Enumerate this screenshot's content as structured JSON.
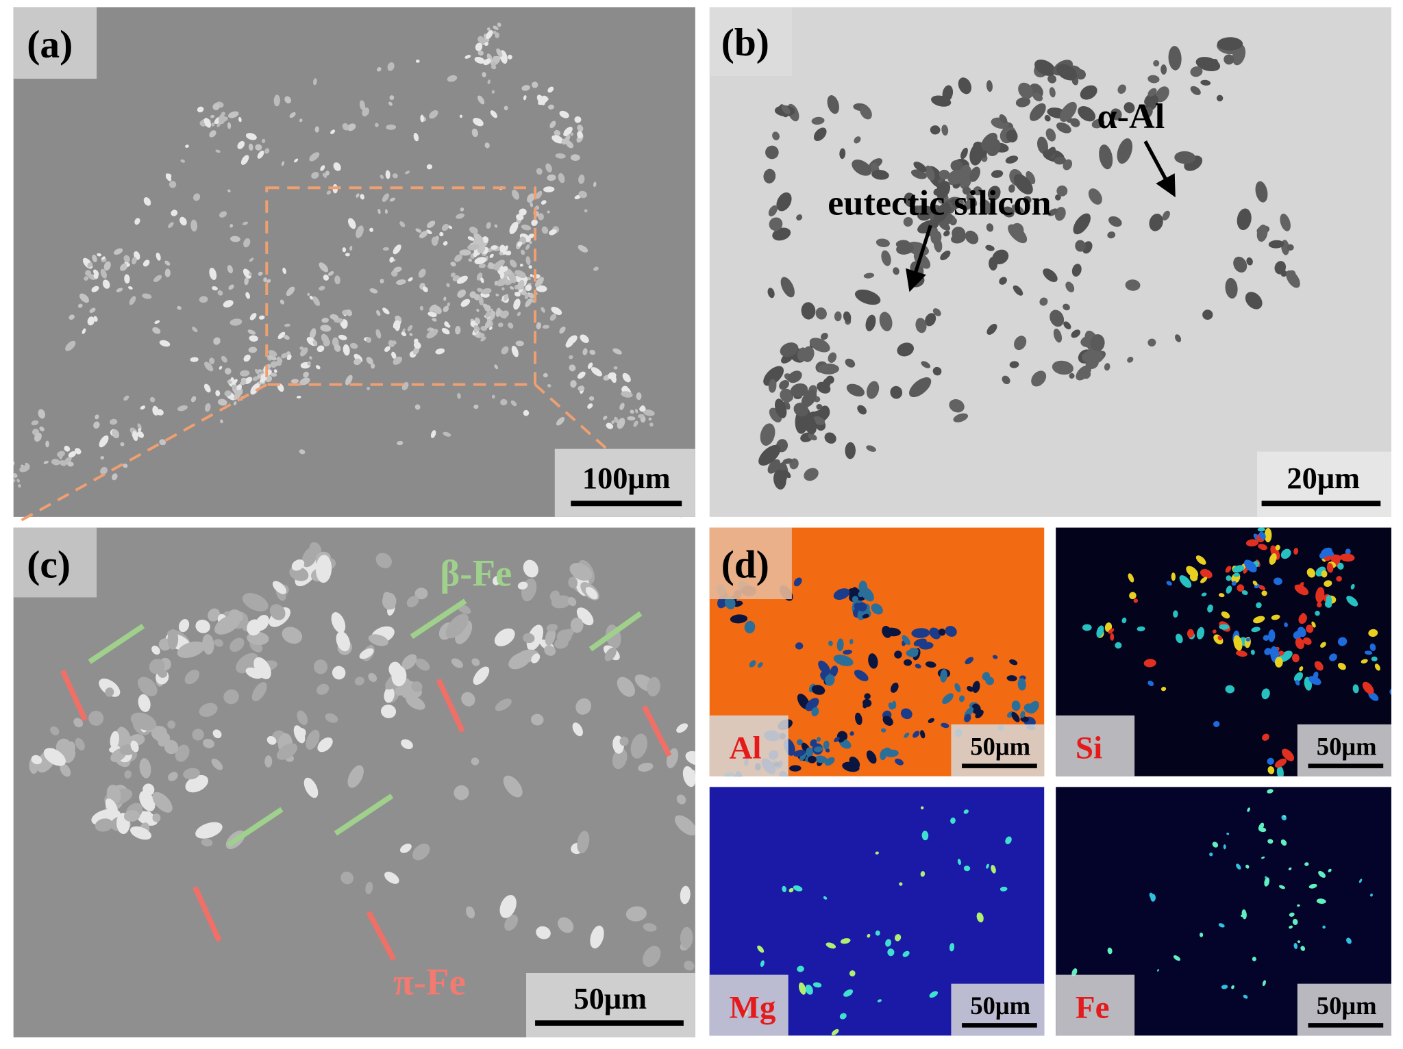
{
  "panels": [
    {
      "label": "(a)",
      "scale_bar": "100μm"
    },
    {
      "label": "(b)",
      "scale_bar": "20μm",
      "annotations": [
        "eutectic silicon",
        "α-Al"
      ]
    },
    {
      "label": "(c)",
      "scale_bar": "50μm",
      "annotations": [
        "β-Fe",
        "π-Fe"
      ]
    },
    {
      "label": "(d)",
      "maps": [
        {
          "element": "Al",
          "scale_bar": "50μm"
        },
        {
          "element": "Si",
          "scale_bar": "50μm"
        },
        {
          "element": "Mg",
          "scale_bar": "50μm"
        },
        {
          "element": "Fe",
          "scale_bar": "50μm"
        }
      ]
    }
  ]
}
